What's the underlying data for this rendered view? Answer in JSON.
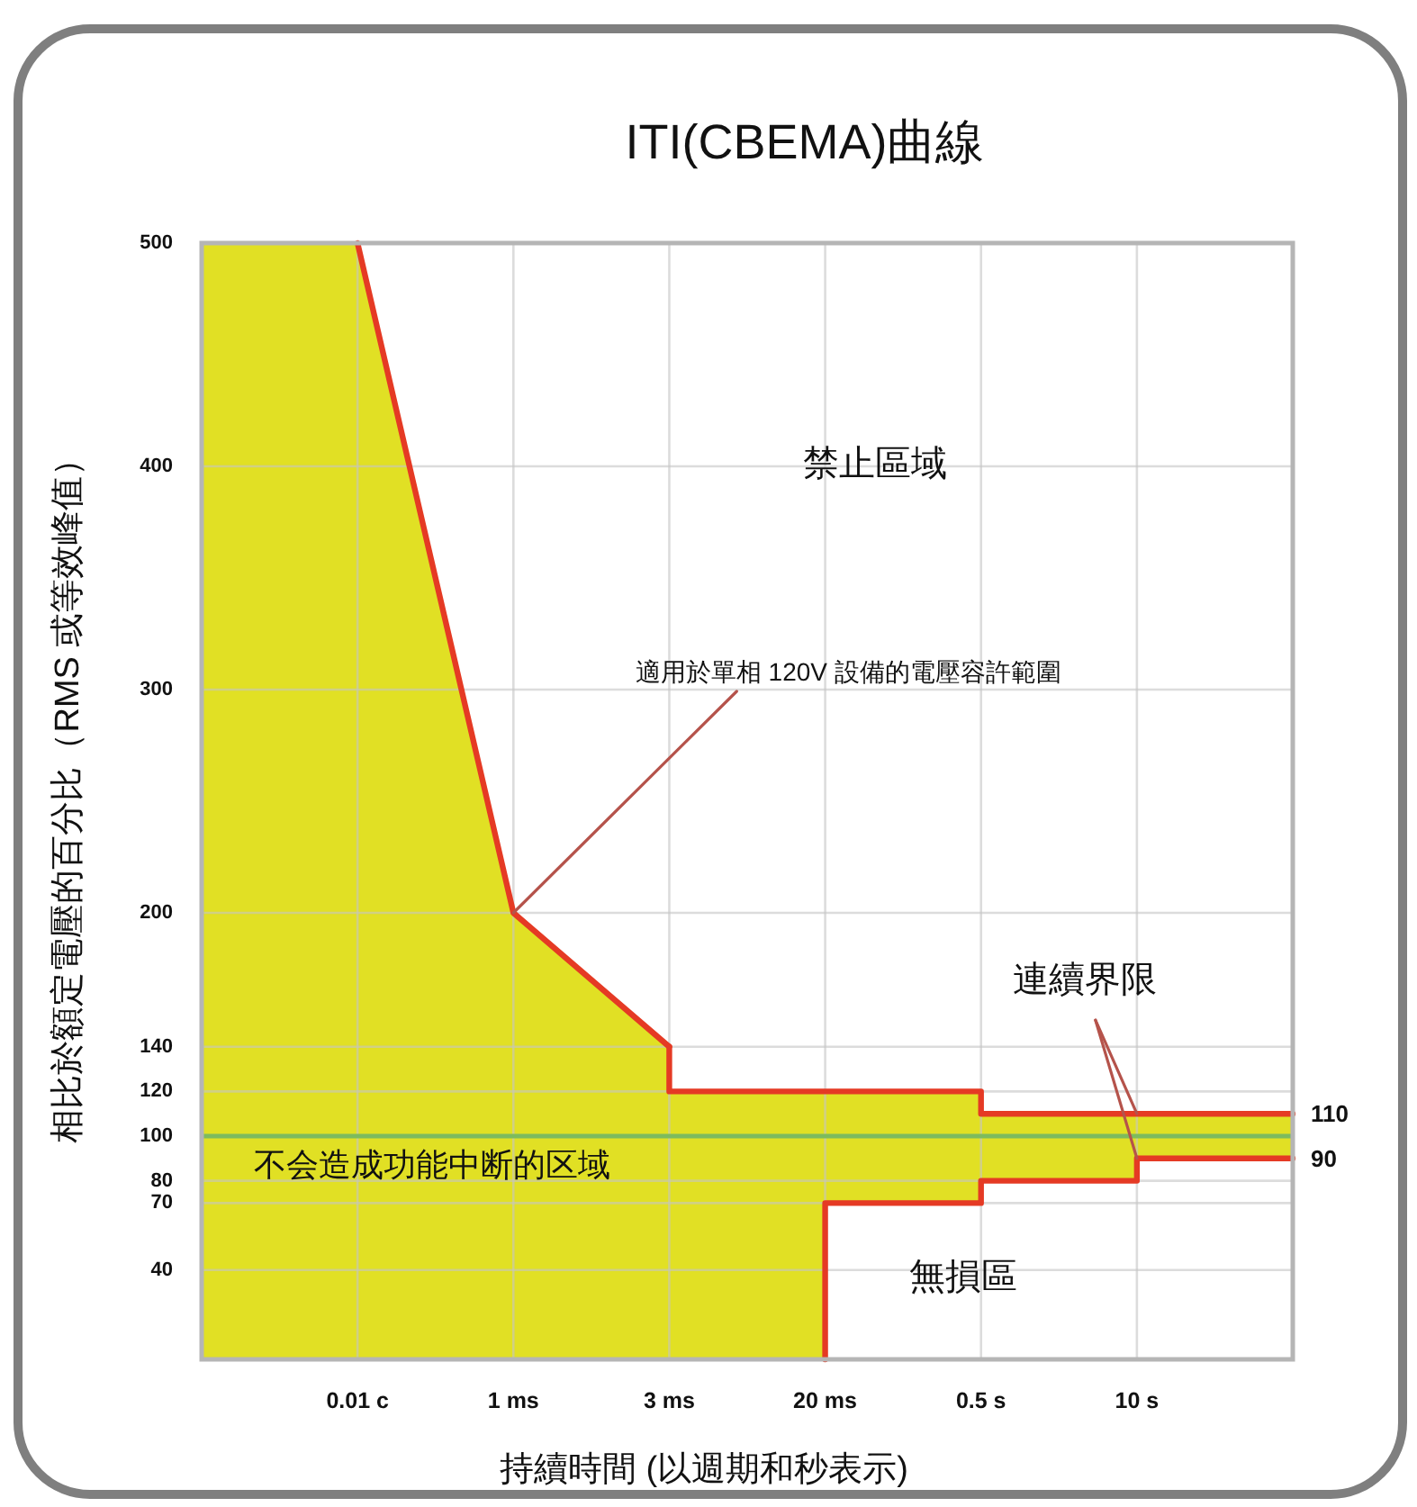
{
  "chart_data": {
    "type": "line",
    "title": "ITI(CBEMA)曲線",
    "xlabel": "持續時間 (以週期和秒表示)",
    "ylabel": "相比於額定電壓的百分比（RMS 或等效峰值）",
    "categories": [
      null,
      "0.01 c",
      "1 ms",
      "3 ms",
      "20 ms",
      "0.5 s",
      "10 s",
      null
    ],
    "series": [
      {
        "type": "area",
        "color": "#e1e024",
        "values": [
          500,
          500,
          200,
          null,
          null,
          null,
          null,
          null
        ]
      },
      {
        "type": "area",
        "color": "#e1e024",
        "values": [
          null,
          null,
          200,
          140,
          null,
          null,
          null,
          null
        ]
      },
      {
        "type": "area",
        "color": "#e1e024",
        "values": [
          null,
          null,
          null,
          120,
          120,
          120,
          null,
          null
        ]
      },
      {
        "type": "area",
        "color": "#e1e024",
        "values": [
          null,
          null,
          null,
          null,
          null,
          110,
          110,
          110
        ]
      },
      {
        "type": "area",
        "color": "#ffffff",
        "values": [
          null,
          null,
          null,
          null,
          70,
          70,
          null,
          null
        ]
      },
      {
        "type": "area",
        "color": "#ffffff",
        "values": [
          null,
          null,
          null,
          null,
          null,
          80,
          80,
          null
        ]
      },
      {
        "type": "area",
        "color": "#ffffff",
        "values": [
          null,
          null,
          null,
          null,
          null,
          null,
          90,
          90
        ]
      },
      {
        "type": "line",
        "color": "#e53a24",
        "values": [
          null,
          500,
          200,
          140,
          null,
          null,
          null,
          null
        ]
      },
      {
        "type": "step",
        "color": "#e53a24",
        "values": [
          null,
          null,
          null,
          140,
          120,
          120,
          110,
          110
        ]
      },
      {
        "type": "step",
        "color": "#e53a24",
        "values": [
          null,
          null,
          null,
          null,
          0,
          70,
          80,
          90
        ]
      }
    ],
    "ylim": [
      0,
      500
    ],
    "yticks": [
      40,
      70,
      80,
      100,
      120,
      140,
      200,
      300,
      400,
      500
    ],
    "grid": true,
    "ref_lines": [
      {
        "axis": "y",
        "value": 100,
        "color": "#7dbb5e"
      }
    ],
    "annotations": [
      "禁止區域",
      {
        "text": "適用於單相 120V 設備的電壓容許範圍",
        "x": "1 ms",
        "y": 200
      },
      "不会造成功能中断的区域",
      {
        "text": "連續界限",
        "x": "10 s",
        "y": 110
      },
      "無損區",
      "110",
      "90"
    ]
  }
}
